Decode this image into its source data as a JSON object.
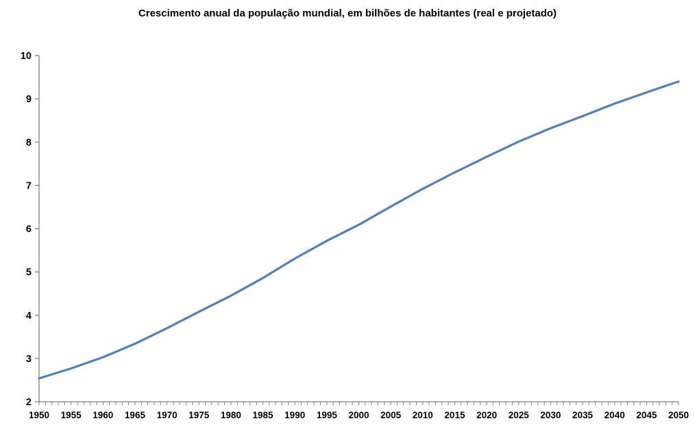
{
  "chart_data": {
    "type": "line",
    "title": "Crescimento anual da população mundial, em bilhões de habitantes (real e projetado)",
    "x": [
      1950,
      1955,
      1960,
      1965,
      1970,
      1975,
      1980,
      1985,
      1990,
      1995,
      2000,
      2005,
      2010,
      2015,
      2020,
      2025,
      2030,
      2035,
      2040,
      2045,
      2050
    ],
    "values": [
      2.54,
      2.77,
      3.03,
      3.34,
      3.7,
      4.08,
      4.45,
      4.86,
      5.31,
      5.72,
      6.09,
      6.51,
      6.92,
      7.3,
      7.66,
      8.01,
      8.32,
      8.6,
      8.89,
      9.15,
      9.4
    ],
    "xlabel": "",
    "ylabel": "",
    "xlim": [
      1950,
      2050
    ],
    "ylim": [
      2,
      10
    ],
    "ytick_step": 1,
    "xtick_label_step": 5,
    "xtick_minor_step": 1,
    "grid": false,
    "legend_position": "none",
    "line_color": "#4F81BD",
    "axis_color": "#808080",
    "text_color": "#000000",
    "background_color": "#FFFFFF"
  }
}
